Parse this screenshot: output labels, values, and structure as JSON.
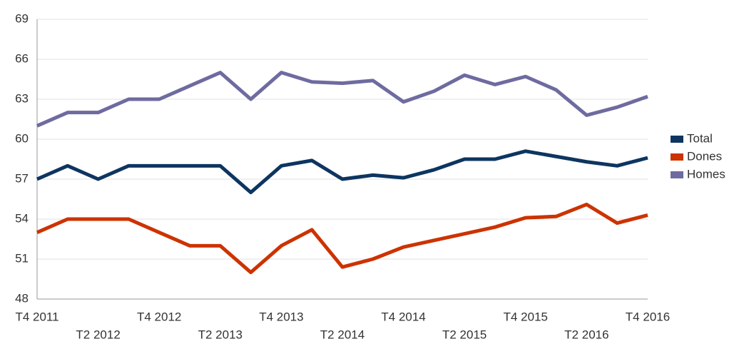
{
  "chart_data": {
    "type": "line",
    "categories": [
      "T4 2011",
      null,
      "T2 2012",
      null,
      "T4 2012",
      null,
      "T2 2013",
      null,
      "T4 2013",
      null,
      "T2 2014",
      null,
      "T4 2014",
      null,
      "T2 2015",
      null,
      "T4 2015",
      null,
      "T2 2016",
      null,
      "T4 2016"
    ],
    "series": [
      {
        "name": "Total",
        "color": "#0d3560",
        "values": [
          57,
          58,
          57,
          58,
          58,
          58,
          58,
          56,
          58,
          58.4,
          57,
          57.3,
          57.1,
          57.7,
          58.5,
          58.5,
          59.1,
          58.7,
          58.3,
          58,
          58.6
        ]
      },
      {
        "name": "Dones",
        "color": "#cc3300",
        "values": [
          53,
          54,
          54,
          54,
          53,
          52,
          52,
          50,
          52,
          53.2,
          50.4,
          51,
          51.9,
          52.4,
          52.9,
          53.4,
          54.1,
          54.2,
          55.1,
          53.7,
          54.3
        ]
      },
      {
        "name": "Homes",
        "color": "#6e6ba0",
        "values": [
          61,
          62,
          62,
          63,
          63,
          64,
          65,
          63,
          65,
          64.3,
          64.2,
          64.4,
          62.8,
          63.6,
          64.8,
          64.1,
          64.7,
          63.7,
          61.8,
          62.4,
          63.2
        ]
      }
    ],
    "ylim": [
      48,
      69
    ],
    "yticks": [
      48,
      51,
      54,
      57,
      60,
      63,
      66,
      69
    ],
    "grid": true,
    "legend": "right"
  }
}
